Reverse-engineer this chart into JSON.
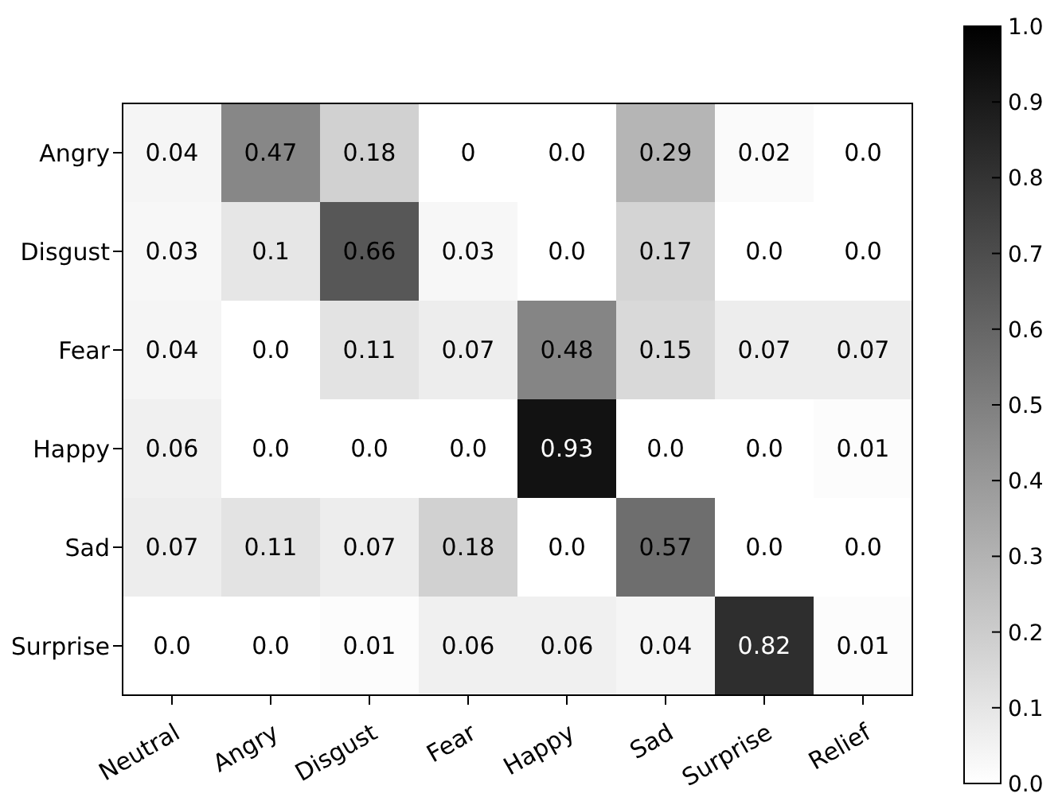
{
  "chart_data": {
    "type": "heatmap",
    "categories": [
      "Neutral",
      "Angry",
      "Disgust",
      "Fear",
      "Happy",
      "Sad",
      "Surprise",
      "Relief"
    ],
    "y_categories": [
      "Angry",
      "Disgust",
      "Fear",
      "Happy",
      "Sad",
      "Surprise"
    ],
    "cells": [
      [
        0.04,
        0.47,
        0.18,
        0,
        0.0,
        0.29,
        0.02,
        0.0
      ],
      [
        0.03,
        0.1,
        0.66,
        0.03,
        0.0,
        0.17,
        0.0,
        0.0
      ],
      [
        0.04,
        0.0,
        0.11,
        0.07,
        0.48,
        0.15,
        0.07,
        0.07
      ],
      [
        0.06,
        0.0,
        0.0,
        0.0,
        0.93,
        0.0,
        0.0,
        0.01
      ],
      [
        0.07,
        0.11,
        0.07,
        0.18,
        0.0,
        0.57,
        0.0,
        0.0
      ],
      [
        0.0,
        0.0,
        0.01,
        0.06,
        0.06,
        0.04,
        0.82,
        0.01
      ]
    ],
    "cell_labels": [
      [
        "0.04",
        "0.47",
        "0.18",
        "0",
        "0.0",
        "0.29",
        "0.02",
        "0.0"
      ],
      [
        "0.03",
        "0.1",
        "0.66",
        "0.03",
        "0.0",
        "0.17",
        "0.0",
        "0.0"
      ],
      [
        "0.04",
        "0.0",
        "0.11",
        "0.07",
        "0.48",
        "0.15",
        "0.07",
        "0.07"
      ],
      [
        "0.06",
        "0.0",
        "0.0",
        "0.0",
        "0.93",
        "0.0",
        "0.0",
        "0.01"
      ],
      [
        "0.07",
        "0.11",
        "0.07",
        "0.18",
        "0.0",
        "0.57",
        "0.0",
        "0.0"
      ],
      [
        "0.0",
        "0.0",
        "0.01",
        "0.06",
        "0.06",
        "0.04",
        "0.82",
        "0.01"
      ]
    ],
    "clim": [
      0.0,
      1.0
    ],
    "cticks": [
      {
        "value": 0,
        "label": "0.0"
      },
      {
        "value": 0.1,
        "label": "0.1"
      },
      {
        "value": 0.2,
        "label": "0.2"
      },
      {
        "value": 0.3,
        "label": "0.3"
      },
      {
        "value": 0.4,
        "label": "0.4"
      },
      {
        "value": 0.5,
        "label": "0.5"
      },
      {
        "value": 0.6,
        "label": "0.6"
      },
      {
        "value": 0.7,
        "label": "0.7"
      },
      {
        "value": 0.8,
        "label": "0.8"
      },
      {
        "value": 0.9,
        "label": "0.9"
      },
      {
        "value": 1,
        "label": "1.0"
      }
    ]
  }
}
